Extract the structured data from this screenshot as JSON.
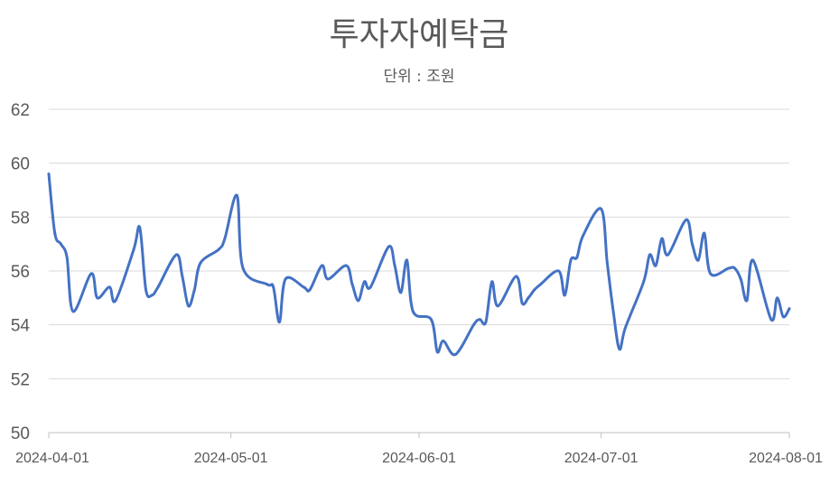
{
  "chart_data": {
    "type": "line",
    "title": "투자자예탁금",
    "subtitle": "단위 : 조원",
    "xlabel": "",
    "ylabel": "",
    "ylim": [
      50,
      62
    ],
    "yticks": [
      "50",
      "52",
      "54",
      "56",
      "58",
      "60",
      "62"
    ],
    "x_range": [
      "2024-04-01",
      "2024-08-01"
    ],
    "xticks": [
      "2024-04-01",
      "2024-05-01",
      "2024-06-01",
      "2024-07-01",
      "2024-08-01"
    ],
    "grid": "horizontal",
    "line_color": "#4472C4",
    "x": [
      "2024-04-01",
      "2024-04-02",
      "2024-04-03",
      "2024-04-04",
      "2024-04-05",
      "2024-04-08",
      "2024-04-09",
      "2024-04-11",
      "2024-04-12",
      "2024-04-15",
      "2024-04-16",
      "2024-04-17",
      "2024-04-18",
      "2024-04-19",
      "2024-04-22",
      "2024-04-23",
      "2024-04-24",
      "2024-04-25",
      "2024-04-26",
      "2024-04-29",
      "2024-04-30",
      "2024-05-02",
      "2024-05-03",
      "2024-05-07",
      "2024-05-08",
      "2024-05-09",
      "2024-05-10",
      "2024-05-13",
      "2024-05-14",
      "2024-05-16",
      "2024-05-17",
      "2024-05-20",
      "2024-05-21",
      "2024-05-22",
      "2024-05-23",
      "2024-05-24",
      "2024-05-27",
      "2024-05-28",
      "2024-05-29",
      "2024-05-30",
      "2024-05-31",
      "2024-06-03",
      "2024-06-04",
      "2024-06-05",
      "2024-06-07",
      "2024-06-10",
      "2024-06-11",
      "2024-06-12",
      "2024-06-13",
      "2024-06-14",
      "2024-06-17",
      "2024-06-18",
      "2024-06-19",
      "2024-06-20",
      "2024-06-21",
      "2024-06-24",
      "2024-06-25",
      "2024-06-26",
      "2024-06-27",
      "2024-06-28",
      "2024-07-01",
      "2024-07-02",
      "2024-07-03",
      "2024-07-04",
      "2024-07-05",
      "2024-07-08",
      "2024-07-09",
      "2024-07-10",
      "2024-07-11",
      "2024-07-12",
      "2024-07-15",
      "2024-07-16",
      "2024-07-17",
      "2024-07-18",
      "2024-07-19",
      "2024-07-22",
      "2024-07-23",
      "2024-07-24",
      "2024-07-25",
      "2024-07-26",
      "2024-07-29",
      "2024-07-30",
      "2024-07-31",
      "2024-08-01"
    ],
    "series": [
      {
        "values": [
          59.6,
          57.4,
          57.0,
          56.5,
          54.5,
          55.9,
          55.0,
          55.4,
          54.9,
          56.8,
          57.6,
          55.3,
          55.1,
          55.4,
          56.6,
          55.8,
          54.7,
          55.3,
          56.3,
          56.8,
          57.2,
          58.8,
          56.1,
          55.5,
          55.4,
          54.1,
          55.7,
          55.4,
          55.3,
          56.2,
          55.7,
          56.2,
          55.5,
          54.9,
          55.6,
          55.4,
          56.9,
          56.2,
          55.2,
          56.4,
          54.5,
          54.2,
          53.0,
          53.4,
          52.9,
          54.0,
          54.2,
          54.1,
          55.6,
          54.7,
          55.8,
          54.8,
          55.0,
          55.3,
          55.5,
          56.0,
          55.1,
          56.4,
          56.5,
          57.3,
          58.3,
          56.3,
          54.5,
          53.1,
          53.9,
          55.6,
          56.6,
          56.2,
          57.2,
          56.6,
          57.9,
          57.0,
          56.4,
          57.4,
          55.9,
          56.1,
          56.1,
          55.7,
          54.9,
          56.4,
          54.2,
          55.0,
          54.3,
          54.6
        ]
      }
    ]
  }
}
